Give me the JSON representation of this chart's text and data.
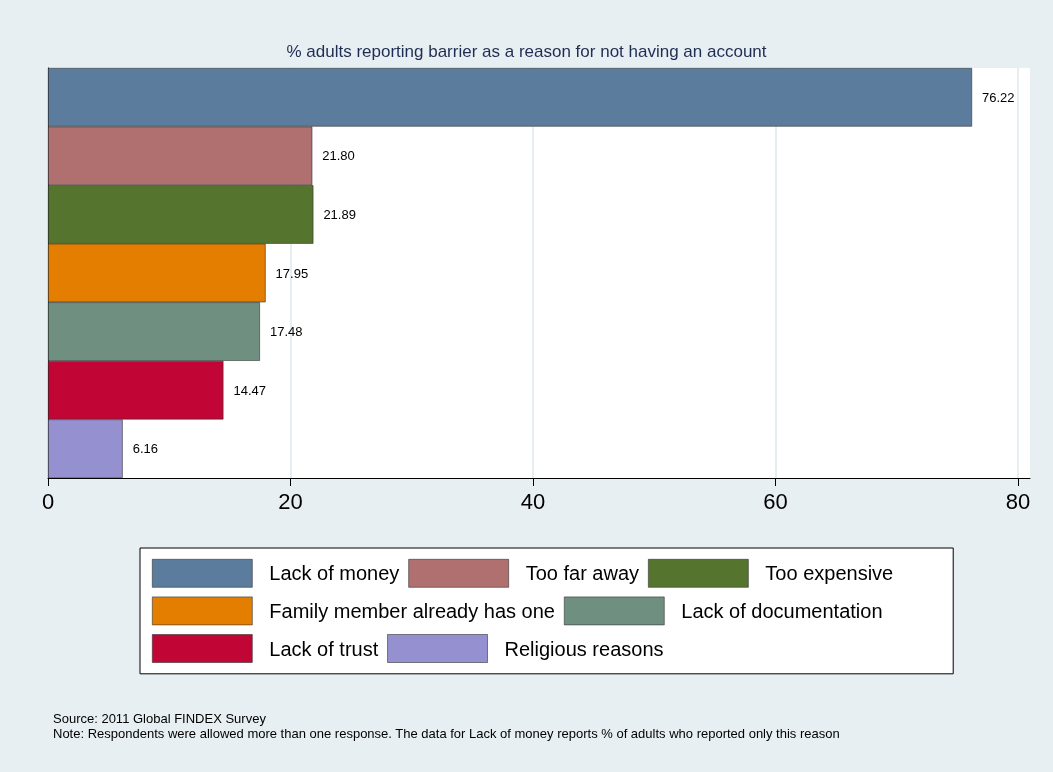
{
  "chart_data": {
    "type": "bar",
    "orientation": "horizontal",
    "title": "% adults reporting barrier as a reason for not having an account",
    "categories": [
      null,
      null,
      null,
      null,
      null,
      null,
      null
    ],
    "series": [
      {
        "name": "Lack of money",
        "color": "#5b7c9c",
        "values": [
          76.22,
          null,
          null,
          null,
          null,
          null,
          null
        ],
        "value_labels": [
          "76.22",
          null,
          null,
          null,
          null,
          null,
          null
        ]
      },
      {
        "name": "Too far away",
        "color": "#b07070",
        "values": [
          null,
          21.8,
          null,
          null,
          null,
          null,
          null
        ],
        "value_labels": [
          null,
          "21.80",
          null,
          null,
          null,
          null,
          null
        ]
      },
      {
        "name": "Too expensive",
        "color": "#55752f",
        "values": [
          null,
          null,
          21.89,
          null,
          null,
          null,
          null
        ],
        "value_labels": [
          null,
          null,
          "21.89",
          null,
          null,
          null,
          null
        ]
      },
      {
        "name": "Family member already has one",
        "color": "#e47e00",
        "values": [
          null,
          null,
          null,
          17.95,
          null,
          null,
          null
        ],
        "value_labels": [
          null,
          null,
          null,
          "17.95",
          null,
          null,
          null
        ]
      },
      {
        "name": "Lack of documentation",
        "color": "#6f8f80",
        "values": [
          null,
          null,
          null,
          null,
          17.48,
          null,
          null
        ],
        "value_labels": [
          null,
          null,
          null,
          null,
          "17.48",
          null,
          null
        ]
      },
      {
        "name": "Lack of trust",
        "color": "#c10534",
        "values": [
          null,
          null,
          null,
          null,
          null,
          14.47,
          null
        ],
        "value_labels": [
          null,
          null,
          null,
          null,
          null,
          "14.47",
          null
        ]
      },
      {
        "name": "Religious reasons",
        "color": "#9591d1",
        "values": [
          null,
          null,
          null,
          null,
          null,
          null,
          6.16
        ],
        "value_labels": [
          null,
          null,
          null,
          null,
          null,
          null,
          "6.16"
        ]
      }
    ],
    "xlim": [
      0,
      81
    ],
    "xticks": [
      0,
      20,
      40,
      60,
      80
    ],
    "grid": "x",
    "legend": "bottom",
    "annotations": [
      "Source: 2011 Global FINDEX Survey",
      "Note: Respondents were allowed more than one response. The data for Lack of money reports % of adults who reported only this reason"
    ]
  }
}
